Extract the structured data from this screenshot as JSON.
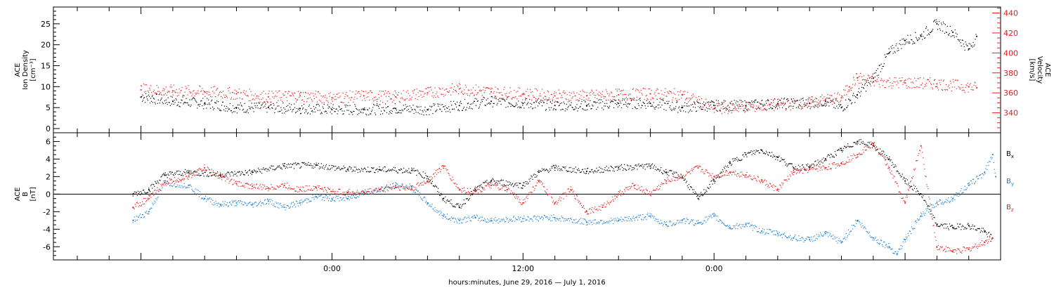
{
  "chart_data": [
    {
      "type": "scatter",
      "panel": "top",
      "ylabel_left": [
        "ACE",
        "Ion Density",
        "[cm⁻³]"
      ],
      "ylabel_right": [
        "ACE",
        "Velocity",
        "[km/s]"
      ],
      "ylim_left": [
        -1,
        29
      ],
      "yticks_left": [
        0,
        5,
        10,
        15,
        20,
        25
      ],
      "ylim_right": [
        320,
        446
      ],
      "yticks_right": [
        340,
        360,
        380,
        400,
        420,
        440
      ],
      "series": [
        {
          "name": "",
          "axis": "left",
          "color": "#000000",
          "points": [
            [
              -12,
              7.5
            ],
            [
              -10,
              6.5
            ],
            [
              -8,
              6
            ],
            [
              -6,
              5
            ],
            [
              -4,
              5
            ],
            [
              -2,
              4.8
            ],
            [
              0,
              4.5
            ],
            [
              2,
              4.5
            ],
            [
              4,
              4.8
            ],
            [
              6,
              4.5
            ],
            [
              8,
              5.5
            ],
            [
              10,
              6.5
            ],
            [
              12,
              6
            ],
            [
              14,
              5.5
            ],
            [
              16,
              5.5
            ],
            [
              18,
              6
            ],
            [
              20,
              6
            ],
            [
              22,
              5
            ],
            [
              24,
              5.5
            ],
            [
              26,
              5.5
            ],
            [
              28,
              6
            ],
            [
              30,
              6
            ],
            [
              31,
              6.5
            ],
            [
              32,
              5
            ],
            [
              33,
              8
            ],
            [
              34,
              12
            ],
            [
              35,
              18
            ],
            [
              36,
              21
            ],
            [
              37,
              22
            ],
            [
              38,
              25
            ],
            [
              39,
              23
            ],
            [
              40,
              19
            ],
            [
              40.5,
              22
            ]
          ]
        },
        {
          "name": "",
          "axis": "right",
          "color": "#e02020",
          "points": [
            [
              -12,
              363
            ],
            [
              -10,
              362
            ],
            [
              -8,
              361
            ],
            [
              -6,
              359
            ],
            [
              -4,
              356
            ],
            [
              -2,
              357
            ],
            [
              0,
              355
            ],
            [
              2,
              357
            ],
            [
              4,
              356
            ],
            [
              6,
              360
            ],
            [
              8,
              364
            ],
            [
              10,
              361
            ],
            [
              12,
              359
            ],
            [
              14,
              357
            ],
            [
              16,
              357
            ],
            [
              18,
              358
            ],
            [
              20,
              359
            ],
            [
              22,
              358
            ],
            [
              24,
              344
            ],
            [
              26,
              346
            ],
            [
              28,
              348
            ],
            [
              30,
              350
            ],
            [
              31,
              353
            ],
            [
              32,
              355
            ],
            [
              32.5,
              366
            ],
            [
              33,
              375
            ],
            [
              34,
              371
            ],
            [
              36,
              370
            ],
            [
              38,
              369
            ],
            [
              40,
              366
            ],
            [
              40.5,
              365
            ]
          ]
        }
      ]
    },
    {
      "type": "scatter",
      "panel": "bottom",
      "ylabel_left": [
        "ACE",
        "B",
        "[nT]"
      ],
      "ylim": [
        -7.5,
        7
      ],
      "yticks": [
        -6,
        -4,
        -2,
        0,
        2,
        4,
        6
      ],
      "legend": [
        "Bx",
        "By",
        "Bz"
      ],
      "series": [
        {
          "name": "Bx",
          "color": "#000000",
          "points": [
            [
              -12.5,
              0
            ],
            [
              -11.5,
              0.5
            ],
            [
              -10.5,
              2.2
            ],
            [
              -9,
              2.5
            ],
            [
              -7,
              2.2
            ],
            [
              -5,
              2.5
            ],
            [
              -3,
              3.2
            ],
            [
              -1,
              3.3
            ],
            [
              1,
              2.8
            ],
            [
              3,
              2.8
            ],
            [
              5,
              2.7
            ],
            [
              6,
              2
            ],
            [
              7,
              -0.5
            ],
            [
              8,
              -1.5
            ],
            [
              9,
              0.5
            ],
            [
              10,
              1.5
            ],
            [
              12,
              1
            ],
            [
              13,
              2.5
            ],
            [
              14,
              3
            ],
            [
              16,
              2.6
            ],
            [
              18,
              3
            ],
            [
              20,
              3.2
            ],
            [
              21,
              2.5
            ],
            [
              22,
              2
            ],
            [
              23,
              -0.5
            ],
            [
              24,
              1.5
            ],
            [
              25,
              3.5
            ],
            [
              26,
              4.5
            ],
            [
              27,
              5
            ],
            [
              28,
              4.2
            ],
            [
              29,
              3
            ],
            [
              30,
              3.1
            ],
            [
              31,
              4
            ],
            [
              32,
              5
            ],
            [
              33,
              6
            ],
            [
              34,
              5.5
            ],
            [
              35,
              4
            ],
            [
              36,
              1.5
            ],
            [
              37,
              0
            ],
            [
              38,
              -3.5
            ],
            [
              39,
              -3.8
            ],
            [
              40,
              -3.6
            ],
            [
              41,
              -4.3
            ],
            [
              41.5,
              -5
            ]
          ]
        },
        {
          "name": "By",
          "color": "#1e7fd2",
          "points": [
            [
              -12.5,
              -3
            ],
            [
              -11.5,
              -2
            ],
            [
              -10.5,
              1.3
            ],
            [
              -9,
              1
            ],
            [
              -8,
              -0.5
            ],
            [
              -7,
              -1.2
            ],
            [
              -6,
              -1
            ],
            [
              -5,
              -1.2
            ],
            [
              -4,
              -0.8
            ],
            [
              -3,
              -1.5
            ],
            [
              -2,
              -1
            ],
            [
              -1,
              -0.3
            ],
            [
              0,
              -0.5
            ],
            [
              1,
              -0.5
            ],
            [
              2,
              0.2
            ],
            [
              3,
              0.5
            ],
            [
              4,
              1
            ],
            [
              5,
              0.8
            ],
            [
              6,
              -1
            ],
            [
              7,
              -2.5
            ],
            [
              8,
              -3
            ],
            [
              9,
              -2.7
            ],
            [
              10,
              -3
            ],
            [
              12,
              -2.8
            ],
            [
              14,
              -2.7
            ],
            [
              16,
              -3.2
            ],
            [
              18,
              -3
            ],
            [
              20,
              -2.5
            ],
            [
              21,
              -3.5
            ],
            [
              22,
              -3
            ],
            [
              23,
              -3.3
            ],
            [
              24,
              -2.5
            ],
            [
              25,
              -3.8
            ],
            [
              26,
              -3.5
            ],
            [
              27,
              -4.2
            ],
            [
              28,
              -4.5
            ],
            [
              29,
              -5
            ],
            [
              30,
              -5.2
            ],
            [
              31,
              -4.5
            ],
            [
              32,
              -5.5
            ],
            [
              33,
              -3
            ],
            [
              34,
              -5
            ],
            [
              35,
              -6
            ],
            [
              35.5,
              -6.8
            ],
            [
              36,
              -5.2
            ],
            [
              37,
              -2.5
            ],
            [
              38,
              -1
            ],
            [
              39,
              -0.5
            ],
            [
              40,
              1
            ],
            [
              41,
              2.5
            ],
            [
              41.5,
              4.5
            ],
            [
              41.7,
              2
            ]
          ]
        },
        {
          "name": "Bz",
          "color": "#e02020",
          "points": [
            [
              -12.5,
              -1.5
            ],
            [
              -11.5,
              -0.5
            ],
            [
              -10.5,
              1.3
            ],
            [
              -9,
              2
            ],
            [
              -8,
              3
            ],
            [
              -7,
              2
            ],
            [
              -6,
              1.2
            ],
            [
              -5,
              0.9
            ],
            [
              -4,
              0.7
            ],
            [
              -3,
              1
            ],
            [
              -2,
              0.5
            ],
            [
              -1,
              0.8
            ],
            [
              0,
              0.3
            ],
            [
              1,
              0.2
            ],
            [
              2,
              0.2
            ],
            [
              3,
              0.5
            ],
            [
              4,
              0.8
            ],
            [
              5,
              0.6
            ],
            [
              6,
              1.5
            ],
            [
              7,
              3.2
            ],
            [
              8,
              0.5
            ],
            [
              9,
              0.3
            ],
            [
              10,
              1
            ],
            [
              11,
              0.5
            ],
            [
              12,
              -1
            ],
            [
              13,
              1.5
            ],
            [
              14,
              -1
            ],
            [
              15,
              0.5
            ],
            [
              16,
              -2
            ],
            [
              17,
              -1.5
            ],
            [
              18,
              0
            ],
            [
              19,
              1
            ],
            [
              20,
              0
            ],
            [
              21,
              1.5
            ],
            [
              22,
              2
            ],
            [
              23,
              3
            ],
            [
              24,
              2
            ],
            [
              25,
              2.5
            ],
            [
              26,
              2.2
            ],
            [
              27,
              1.5
            ],
            [
              28,
              0.5
            ],
            [
              29,
              2.5
            ],
            [
              30,
              2.8
            ],
            [
              31,
              3
            ],
            [
              32,
              3.5
            ],
            [
              33,
              4.5
            ],
            [
              34,
              5.8
            ],
            [
              35,
              3
            ],
            [
              36,
              -1
            ],
            [
              37,
              5.5
            ],
            [
              38,
              -6
            ],
            [
              39,
              -6.5
            ],
            [
              40,
              -6.3
            ],
            [
              41,
              -5.5
            ],
            [
              41.5,
              -5
            ]
          ]
        }
      ]
    }
  ],
  "x_axis": {
    "xlim": [
      -17.5,
      42
    ],
    "xticks": [
      0,
      12,
      24
    ],
    "xtick_labels": [
      "0:00",
      "12:00",
      "0:00"
    ],
    "label": "hours:minutes, June 29, 2016 — July  1, 2016"
  },
  "colors": {
    "black": "#000000",
    "red": "#e02020",
    "blue": "#1e7fd2"
  }
}
